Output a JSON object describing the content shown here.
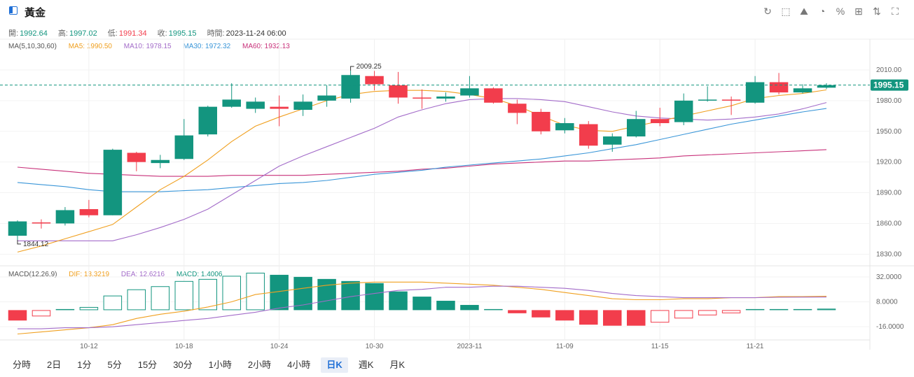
{
  "title": "黃金",
  "toolbar": {
    "icons": [
      "refresh-icon",
      "draw-icon",
      "pattern-icon",
      "pie-icon",
      "percent-icon",
      "grid-icon",
      "compare-icon",
      "fullscreen-icon"
    ],
    "glyphs": [
      "↻",
      "⬚",
      "⛰",
      "◔",
      "%",
      "⊞",
      "⇅",
      "⛶"
    ]
  },
  "info": {
    "open_label": "開:",
    "open": "1992.64",
    "high_label": "高:",
    "high": "1997.02",
    "low_label": "低:",
    "low": "1991.34",
    "close_label": "收:",
    "close": "1995.15",
    "time_label": "時間:",
    "time": "2023-11-24 06:00"
  },
  "ma": {
    "label": "MA(5,10,30,60)",
    "ma5": "MA5: 1990.50",
    "ma10": "MA10: 1978.15",
    "ma30": "MA30: 1972.32",
    "ma60": "MA60: 1932.13"
  },
  "macd": {
    "label": "MACD(12,26,9)",
    "dif": "DIF: 13.3219",
    "dea": "DEA: 12.6216",
    "macd": "MACD: 1.4006"
  },
  "colors": {
    "up": "#13957f",
    "down": "#f23d4c",
    "ma5": "#f0a020",
    "ma10": "#a36cc9",
    "ma30": "#3a96d8",
    "ma60": "#c8317a",
    "current_price": "#13957f"
  },
  "tabs": [
    "分時",
    "2日",
    "1分",
    "5分",
    "15分",
    "30分",
    "1小時",
    "2小時",
    "4小時",
    "日K",
    "週K",
    "月K"
  ],
  "active_tab": "日K",
  "chart_data": {
    "type": "candlestick",
    "current_price": 1995.15,
    "max_label": "2009.25",
    "min_label": "1844.12",
    "price_axis": [
      2010.0,
      1980.0,
      1950.0,
      1920.0,
      1890.0,
      1860.0,
      1830.0
    ],
    "price_axis_labels": [
      "2010.00",
      "1980.00",
      "1950.00",
      "1920.00",
      "1890.00",
      "1860.00",
      "1830.00"
    ],
    "macd_axis": [
      32.0,
      8.0,
      -16.0
    ],
    "macd_axis_labels": [
      "32.0000",
      "8.0000",
      "-16.0000"
    ],
    "x_labels": [
      "10-12",
      "10-18",
      "10-24",
      "10-30",
      "2023-11",
      "11-09",
      "11-15",
      "11-21"
    ],
    "x_label_index": [
      3,
      7,
      11,
      15,
      19,
      23,
      27,
      31
    ],
    "candles": [
      {
        "o": 1848,
        "h": 1863,
        "l": 1844,
        "c": 1862
      },
      {
        "o": 1861,
        "h": 1864,
        "l": 1855,
        "c": 1860
      },
      {
        "o": 1860,
        "h": 1876,
        "l": 1858,
        "c": 1873
      },
      {
        "o": 1874,
        "h": 1883,
        "l": 1866,
        "c": 1868
      },
      {
        "o": 1868,
        "h": 1933,
        "l": 1868,
        "c": 1932
      },
      {
        "o": 1929,
        "h": 1930,
        "l": 1911,
        "c": 1920
      },
      {
        "o": 1919,
        "h": 1927,
        "l": 1914,
        "c": 1922
      },
      {
        "o": 1923,
        "h": 1962,
        "l": 1922,
        "c": 1946
      },
      {
        "o": 1947,
        "h": 1975,
        "l": 1945,
        "c": 1974
      },
      {
        "o": 1974,
        "h": 1997,
        "l": 1973,
        "c": 1981
      },
      {
        "o": 1972,
        "h": 1983,
        "l": 1968,
        "c": 1979
      },
      {
        "o": 1974,
        "h": 1985,
        "l": 1955,
        "c": 1972
      },
      {
        "o": 1971,
        "h": 1986,
        "l": 1965,
        "c": 1979
      },
      {
        "o": 1980,
        "h": 1995,
        "l": 1974,
        "c": 1985
      },
      {
        "o": 1982,
        "h": 2009.25,
        "l": 1978,
        "c": 2005
      },
      {
        "o": 2004,
        "h": 2009,
        "l": 1990,
        "c": 1996
      },
      {
        "o": 1995,
        "h": 2008,
        "l": 1977,
        "c": 1983
      },
      {
        "o": 1983,
        "h": 1991,
        "l": 1972,
        "c": 1982
      },
      {
        "o": 1982,
        "h": 1988,
        "l": 1979,
        "c": 1984
      },
      {
        "o": 1985,
        "h": 2004,
        "l": 1983,
        "c": 1992
      },
      {
        "o": 1992,
        "h": 1993,
        "l": 1977,
        "c": 1978
      },
      {
        "o": 1977,
        "h": 1981,
        "l": 1957,
        "c": 1968
      },
      {
        "o": 1969,
        "h": 1972,
        "l": 1947,
        "c": 1950
      },
      {
        "o": 1951,
        "h": 1963,
        "l": 1948,
        "c": 1958
      },
      {
        "o": 1957,
        "h": 1960,
        "l": 1933,
        "c": 1936
      },
      {
        "o": 1937,
        "h": 1948,
        "l": 1930,
        "c": 1945
      },
      {
        "o": 1945,
        "h": 1970,
        "l": 1944,
        "c": 1962
      },
      {
        "o": 1962,
        "h": 1973,
        "l": 1955,
        "c": 1958
      },
      {
        "o": 1959,
        "h": 1987,
        "l": 1956,
        "c": 1980
      },
      {
        "o": 1980,
        "h": 1994,
        "l": 1979,
        "c": 1981
      },
      {
        "o": 1981,
        "h": 1984,
        "l": 1966,
        "c": 1980
      },
      {
        "o": 1978,
        "h": 2004,
        "l": 1977,
        "c": 1998
      },
      {
        "o": 1998,
        "h": 2007,
        "l": 1986,
        "c": 1988
      },
      {
        "o": 1988,
        "h": 1996,
        "l": 1987,
        "c": 1992
      },
      {
        "o": 1992.64,
        "h": 1997.02,
        "l": 1991.34,
        "c": 1995.15
      }
    ],
    "ma5": [
      1832,
      1838,
      1845,
      1852,
      1859,
      1876,
      1893,
      1906,
      1922,
      1940,
      1955,
      1964,
      1972,
      1980,
      1986,
      1989,
      1990,
      1990,
      1989,
      1986,
      1982,
      1975,
      1965,
      1956,
      1951,
      1950,
      1955,
      1960,
      1965,
      1970,
      1975,
      1982,
      1985,
      1987,
      1990.5
    ],
    "ma10": [
      1843,
      1843,
      1843,
      1843,
      1843,
      1849,
      1856,
      1864,
      1874,
      1888,
      1902,
      1916,
      1926,
      1935,
      1944,
      1953,
      1964,
      1971,
      1977,
      1981,
      1982,
      1982,
      1981,
      1979,
      1974,
      1969,
      1965,
      1963,
      1962,
      1961,
      1962,
      1964,
      1967,
      1972,
      1978.15
    ],
    "ma30": [
      1900,
      1898,
      1896,
      1893,
      1891,
      1891,
      1891,
      1892,
      1893,
      1895,
      1897,
      1899,
      1900,
      1902,
      1905,
      1908,
      1910,
      1912,
      1915,
      1917,
      1919,
      1921,
      1923,
      1926,
      1929,
      1933,
      1937,
      1942,
      1947,
      1952,
      1957,
      1961,
      1965,
      1969,
      1972.32
    ],
    "ma60": [
      1915,
      1913,
      1911,
      1909,
      1908,
      1907,
      1906,
      1906,
      1906,
      1907,
      1907,
      1907,
      1907,
      1908,
      1909,
      1910,
      1911,
      1913,
      1914,
      1916,
      1918,
      1919,
      1920,
      1921,
      1921,
      1922,
      1923,
      1924,
      1926,
      1927,
      1928,
      1929,
      1930,
      1931,
      1932.13
    ],
    "macd_hist": [
      -10,
      -6,
      1,
      3,
      14,
      20,
      23,
      28,
      30,
      33,
      36,
      34,
      32,
      30,
      28,
      26,
      18,
      13,
      9,
      5,
      1,
      -3,
      -7,
      -10,
      -14,
      -15,
      -15,
      -12,
      -8,
      -5,
      -3,
      1,
      1,
      1,
      1.4
    ],
    "dif": [
      -23,
      -21,
      -19,
      -17,
      -14,
      -8,
      -4,
      -1,
      3,
      8,
      15,
      18,
      21,
      24,
      26,
      27,
      27,
      27,
      26,
      25,
      24,
      22,
      20,
      17,
      14,
      11,
      10,
      10,
      11,
      11,
      12,
      12,
      13,
      13,
      13.3
    ],
    "dea": [
      -18,
      -18,
      -17,
      -17,
      -16,
      -14,
      -12,
      -10,
      -8,
      -5,
      -2,
      2,
      5,
      9,
      13,
      16,
      19,
      20,
      22,
      22,
      23,
      23,
      22,
      21,
      19,
      16,
      14,
      13,
      12,
      12,
      12,
      12,
      12.4,
      12.5,
      12.6
    ]
  }
}
